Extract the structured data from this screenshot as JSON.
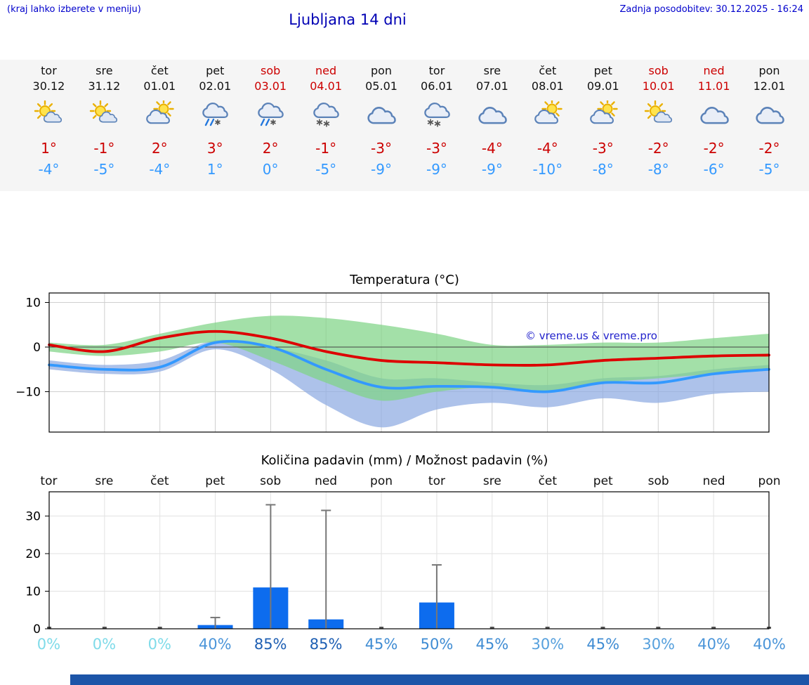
{
  "header": {
    "note": "(kraj lahko izberete v meniju)",
    "title": "Ljubljana 14 dni",
    "updated": "Zadnja posodobitev: 30.12.2025 - 16:24"
  },
  "colors": {
    "header_blue": "#0000cc",
    "title_blue": "#0000b4",
    "weekend_red": "#cc0000",
    "tmax_red": "#cc0000",
    "tmin_blue": "#3399ff",
    "strip_bg": "#f5f5f5",
    "footer_bar": "#1c55a8",
    "copyright_blue": "#2222cc"
  },
  "days": [
    {
      "name": "tor",
      "date": "30.12",
      "weekend": false,
      "icon": "mostly-sunny",
      "tmax": "1°",
      "tmin": "-4°"
    },
    {
      "name": "sre",
      "date": "31.12",
      "weekend": false,
      "icon": "mostly-sunny",
      "tmax": "-1°",
      "tmin": "-5°"
    },
    {
      "name": "čet",
      "date": "01.01",
      "weekend": false,
      "icon": "partly-cloudy",
      "tmax": "2°",
      "tmin": "-4°"
    },
    {
      "name": "pet",
      "date": "02.01",
      "weekend": false,
      "icon": "sleet",
      "tmax": "3°",
      "tmin": "1°"
    },
    {
      "name": "sob",
      "date": "03.01",
      "weekend": true,
      "icon": "sleet",
      "tmax": "2°",
      "tmin": "0°"
    },
    {
      "name": "ned",
      "date": "04.01",
      "weekend": true,
      "icon": "snow",
      "tmax": "-1°",
      "tmin": "-5°"
    },
    {
      "name": "pon",
      "date": "05.01",
      "weekend": false,
      "icon": "cloudy",
      "tmax": "-3°",
      "tmin": "-9°"
    },
    {
      "name": "tor",
      "date": "06.01",
      "weekend": false,
      "icon": "snow",
      "tmax": "-3°",
      "tmin": "-9°"
    },
    {
      "name": "sre",
      "date": "07.01",
      "weekend": false,
      "icon": "cloudy",
      "tmax": "-4°",
      "tmin": "-9°"
    },
    {
      "name": "čet",
      "date": "08.01",
      "weekend": false,
      "icon": "partly-cloudy",
      "tmax": "-4°",
      "tmin": "-10°"
    },
    {
      "name": "pet",
      "date": "09.01",
      "weekend": false,
      "icon": "partly-cloudy",
      "tmax": "-3°",
      "tmin": "-8°"
    },
    {
      "name": "sob",
      "date": "10.01",
      "weekend": true,
      "icon": "mostly-sunny",
      "tmax": "-2°",
      "tmin": "-8°"
    },
    {
      "name": "ned",
      "date": "11.01",
      "weekend": true,
      "icon": "cloudy",
      "tmax": "-2°",
      "tmin": "-6°"
    },
    {
      "name": "pon",
      "date": "12.01",
      "weekend": false,
      "icon": "cloudy",
      "tmax": "-2°",
      "tmin": "-5°"
    }
  ],
  "chart_data": [
    {
      "type": "line",
      "title": "Temperatura (°C)",
      "x_categories": [
        "30.12",
        "31.12",
        "01.01",
        "02.01",
        "03.01",
        "04.01",
        "05.01",
        "06.01",
        "07.01",
        "08.01",
        "09.01",
        "10.01",
        "11.01",
        "12.01"
      ],
      "yticks": [
        {
          "v": 10,
          "label": "10"
        },
        {
          "v": 0,
          "label": "0"
        },
        {
          "v": -10,
          "label": "−10"
        }
      ],
      "ylim": [
        -19,
        12
      ],
      "grid": true,
      "series": [
        {
          "name": "max-temp",
          "color": "#dd0000",
          "values": [
            0.5,
            -1,
            2,
            3.5,
            2,
            -1,
            -3,
            -3.5,
            -4,
            -4,
            -3,
            -2.5,
            -2,
            -1.8
          ]
        },
        {
          "name": "min-temp",
          "color": "#3399ff",
          "values": [
            -4,
            -5,
            -4.5,
            1,
            0,
            -5,
            -9,
            -8.8,
            -9,
            -10,
            -8,
            -8,
            -6,
            -5
          ]
        },
        {
          "name": "max-range-upper",
          "color": "#7fd486",
          "values": [
            1,
            0.5,
            3,
            5.5,
            7,
            6.5,
            5,
            3,
            0.5,
            0.5,
            1,
            1,
            2,
            3
          ]
        },
        {
          "name": "max-range-lower",
          "color": "#7fd486",
          "values": [
            -1,
            -2,
            -1,
            1,
            -3,
            -8,
            -12,
            -10,
            -9,
            -10,
            -8,
            -7,
            -6,
            -5
          ]
        },
        {
          "name": "min-range-upper",
          "color": "#92aee3",
          "values": [
            -3,
            -4,
            -3,
            1.5,
            0,
            -3,
            -7,
            -7,
            -8,
            -8.5,
            -7,
            -6.5,
            -5,
            -4
          ]
        },
        {
          "name": "min-range-lower",
          "color": "#92aee3",
          "values": [
            -5,
            -6,
            -5.5,
            -0.5,
            -5,
            -13,
            -18,
            -14,
            -12.5,
            -13.5,
            -11.5,
            -12.5,
            -10.5,
            -10
          ]
        }
      ],
      "annotation": "© vreme.us & vreme.pro"
    },
    {
      "type": "bar",
      "title": "Količina padavin (mm) / Možnost padavin (%)",
      "categories": [
        "tor",
        "sre",
        "čet",
        "pet",
        "sob",
        "ned",
        "pon",
        "tor",
        "sre",
        "čet",
        "pet",
        "sob",
        "ned",
        "pon"
      ],
      "precip_mm": [
        0,
        0,
        0,
        1,
        11,
        2.5,
        0,
        7,
        0,
        0,
        0,
        0,
        0,
        0
      ],
      "precip_max_mm": [
        0,
        0,
        0,
        3,
        33,
        31.5,
        0,
        17,
        0,
        0,
        0,
        0,
        0,
        0
      ],
      "probability_pct": [
        "0%",
        "0%",
        "0%",
        "40%",
        "85%",
        "85%",
        "45%",
        "50%",
        "45%",
        "30%",
        "45%",
        "30%",
        "40%",
        "40%"
      ],
      "probability_colors": [
        "#7fdbe9",
        "#7fdbe9",
        "#7fdbe9",
        "#4b95d9",
        "#1e5fb3",
        "#1e5fb3",
        "#3f8cd3",
        "#3f8cd3",
        "#3f8cd3",
        "#56a0dd",
        "#3f8cd3",
        "#56a0dd",
        "#4b95d9",
        "#4b95d9"
      ],
      "yticks": [
        {
          "v": 0,
          "label": "0"
        },
        {
          "v": 10,
          "label": "10"
        },
        {
          "v": 20,
          "label": "20"
        },
        {
          "v": 30,
          "label": "30"
        }
      ],
      "ylim": [
        0,
        36
      ],
      "grid": true,
      "bar_color": "#0d6cee",
      "whisker_color": "#777777"
    }
  ]
}
